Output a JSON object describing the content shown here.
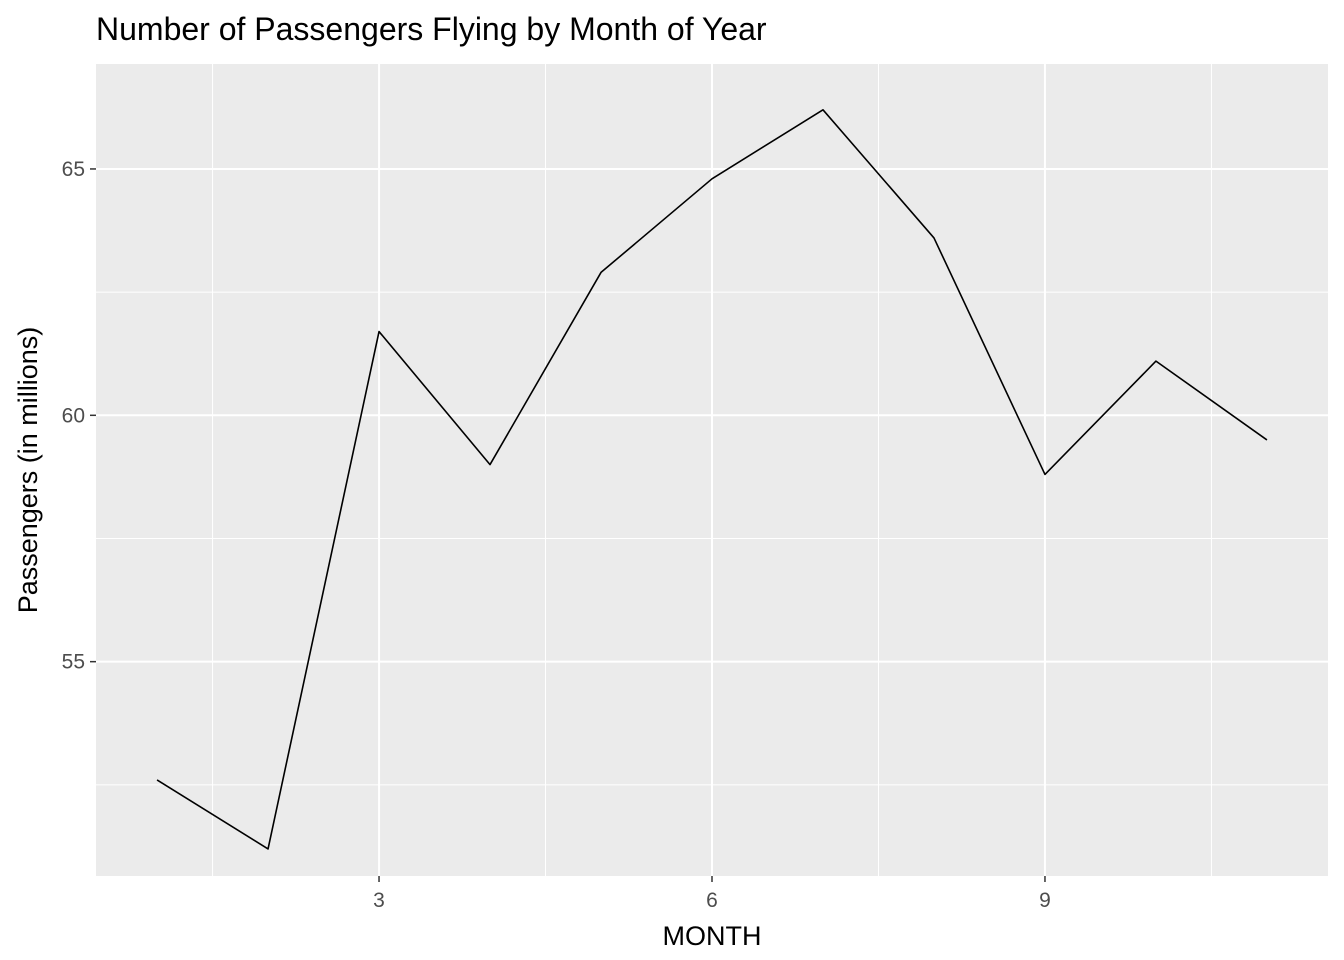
{
  "chart_data": {
    "type": "line",
    "title": "Number of Passengers Flying by Month of Year",
    "xlabel": "MONTH",
    "ylabel": "Passengers (in millions)",
    "x": [
      1,
      2,
      3,
      4,
      5,
      6,
      7,
      8,
      9,
      10,
      11
    ],
    "series": [
      {
        "values": [
          52.6,
          51.2,
          61.7,
          59.0,
          62.9,
          64.8,
          66.2,
          63.6,
          58.8,
          61.1,
          59.5
        ]
      }
    ],
    "xlim": [
      0.45,
      11.55
    ],
    "ylim": [
      50.65,
      67.13
    ],
    "x_ticks": [
      3,
      6,
      9
    ],
    "x_tick_labels": [
      "3",
      "6",
      "9"
    ],
    "x_minor_ticks": [
      1.5,
      4.5,
      7.5,
      10.5
    ],
    "y_ticks": [
      55,
      60,
      65
    ],
    "y_tick_labels": [
      "55",
      "60",
      "65"
    ],
    "y_minor_ticks": [
      52.5,
      57.5,
      62.5
    ],
    "grid": true,
    "colors": {
      "panel_background": "#ebebeb",
      "grid_major": "#ffffff",
      "grid_minor": "#ffffff",
      "tick_mark": "#333333",
      "tick_label": "#4d4d4d",
      "line": "#000000"
    }
  }
}
